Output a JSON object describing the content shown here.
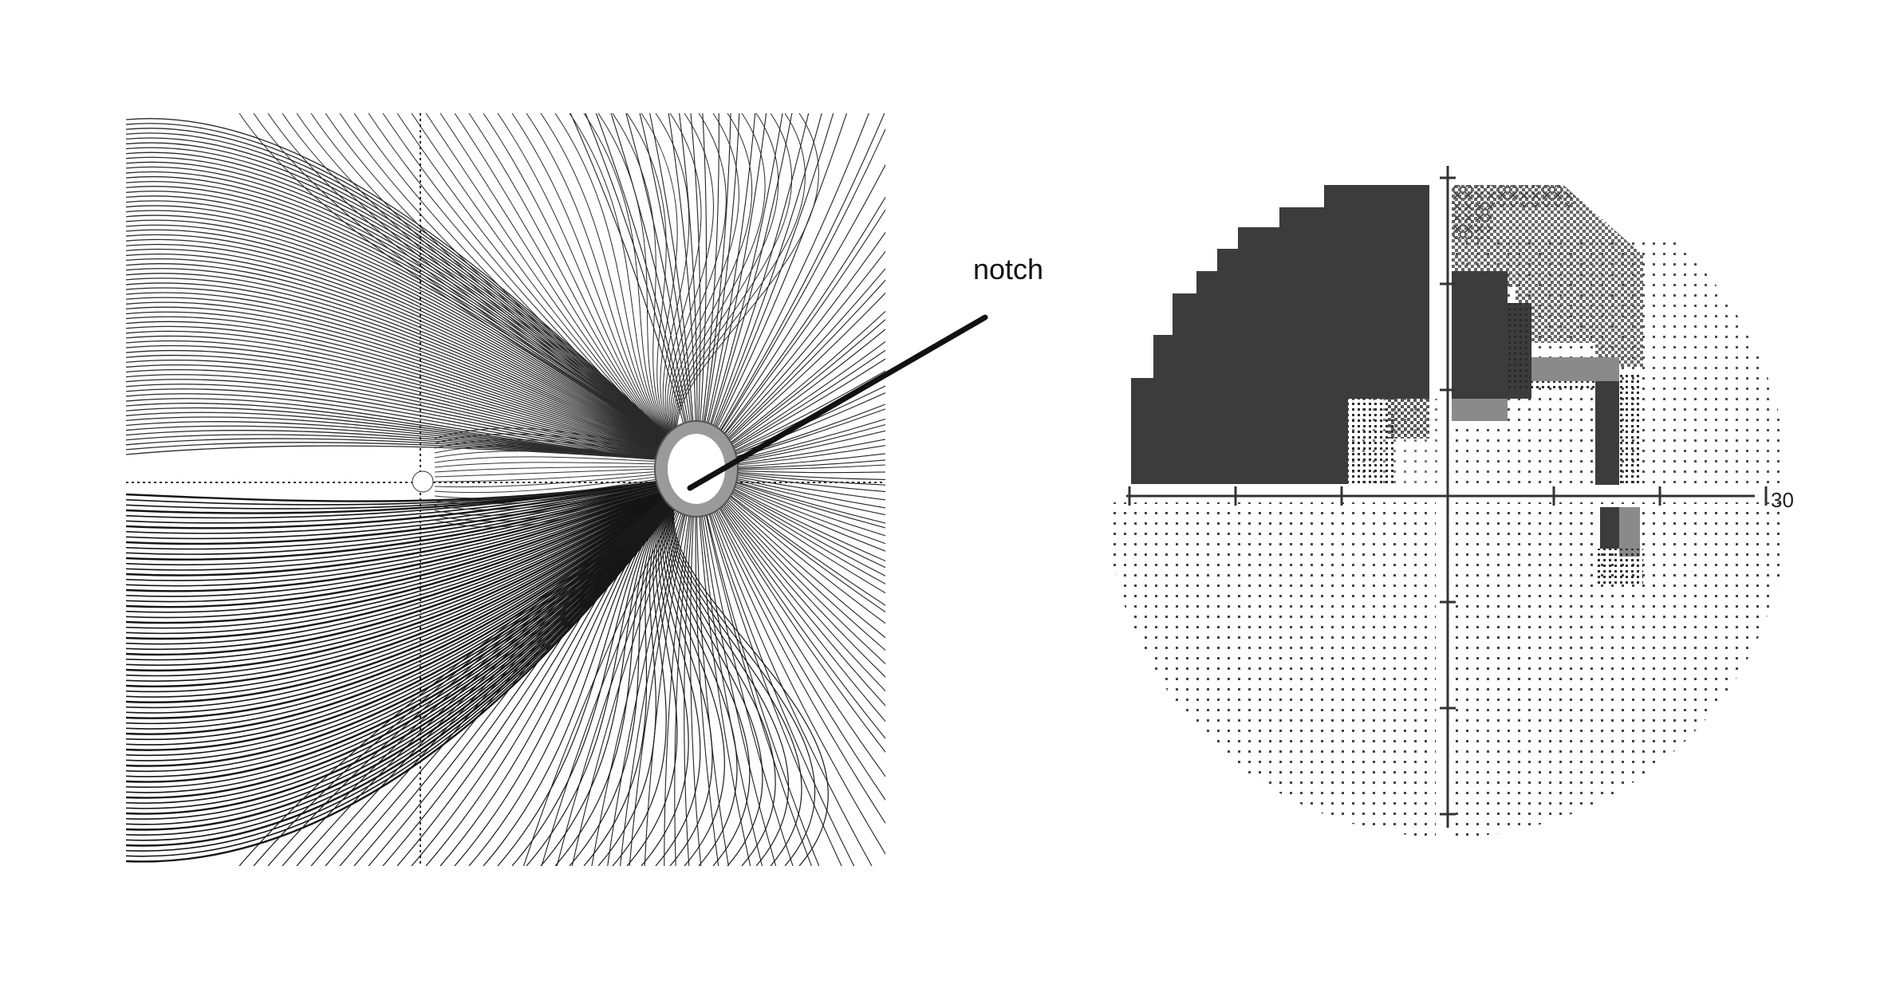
{
  "annotation": {
    "label": "notch"
  },
  "visual_field": {
    "axis_max_label": "30"
  },
  "colors": {
    "background": "#ffffff",
    "ink": "#111111",
    "dense_defect": "#3c3c3c",
    "mid_gray": "#8a8a8a",
    "disc_gray": "#9a9a9a"
  }
}
